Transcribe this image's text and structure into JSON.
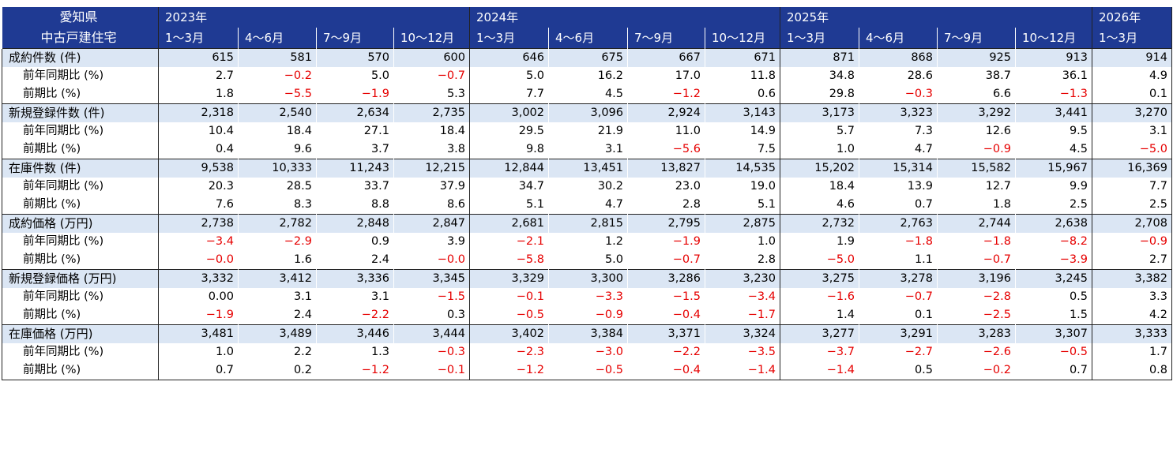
{
  "header": {
    "corner_line1": "愛知県",
    "corner_line2": "中古戸建住宅",
    "years": [
      {
        "label": "2023年",
        "span": 4
      },
      {
        "label": "2024年",
        "span": 4
      },
      {
        "label": "2025年",
        "span": 4
      },
      {
        "label": "2026年",
        "span": 1
      }
    ],
    "quarters": [
      "1～3月",
      "4～6月",
      "7～9月",
      "10～12月",
      "1～3月",
      "4～6月",
      "7～9月",
      "10～12月",
      "1～3月",
      "4～6月",
      "7～9月",
      "10～12月",
      "1～3月"
    ]
  },
  "rows": [
    {
      "label": "成約件数 (件)",
      "main": true,
      "values": [
        "615",
        "581",
        "570",
        "600",
        "646",
        "675",
        "667",
        "671",
        "871",
        "868",
        "925",
        "913",
        "914"
      ]
    },
    {
      "label": "前年同期比 (%)",
      "main": false,
      "values": [
        "2.7",
        "−0.2",
        "5.0",
        "−0.7",
        "5.0",
        "16.2",
        "17.0",
        "11.8",
        "34.8",
        "28.6",
        "38.7",
        "36.1",
        "4.9"
      ]
    },
    {
      "label": "前期比 (%)",
      "main": false,
      "values": [
        "1.8",
        "−5.5",
        "−1.9",
        "5.3",
        "7.7",
        "4.5",
        "−1.2",
        "0.6",
        "29.8",
        "−0.3",
        "6.6",
        "−1.3",
        "0.1"
      ]
    },
    {
      "label": "新規登録件数 (件)",
      "main": true,
      "values": [
        "2,318",
        "2,540",
        "2,634",
        "2,735",
        "3,002",
        "3,096",
        "2,924",
        "3,143",
        "3,173",
        "3,323",
        "3,292",
        "3,441",
        "3,270"
      ]
    },
    {
      "label": "前年同期比 (%)",
      "main": false,
      "values": [
        "10.4",
        "18.4",
        "27.1",
        "18.4",
        "29.5",
        "21.9",
        "11.0",
        "14.9",
        "5.7",
        "7.3",
        "12.6",
        "9.5",
        "3.1"
      ]
    },
    {
      "label": "前期比 (%)",
      "main": false,
      "values": [
        "0.4",
        "9.6",
        "3.7",
        "3.8",
        "9.8",
        "3.1",
        "−5.6",
        "7.5",
        "1.0",
        "4.7",
        "−0.9",
        "4.5",
        "−5.0"
      ]
    },
    {
      "label": "在庫件数 (件)",
      "main": true,
      "values": [
        "9,538",
        "10,333",
        "11,243",
        "12,215",
        "12,844",
        "13,451",
        "13,827",
        "14,535",
        "15,202",
        "15,314",
        "15,582",
        "15,967",
        "16,369"
      ]
    },
    {
      "label": "前年同期比 (%)",
      "main": false,
      "values": [
        "20.3",
        "28.5",
        "33.7",
        "37.9",
        "34.7",
        "30.2",
        "23.0",
        "19.0",
        "18.4",
        "13.9",
        "12.7",
        "9.9",
        "7.7"
      ]
    },
    {
      "label": "前期比 (%)",
      "main": false,
      "values": [
        "7.6",
        "8.3",
        "8.8",
        "8.6",
        "5.1",
        "4.7",
        "2.8",
        "5.1",
        "4.6",
        "0.7",
        "1.8",
        "2.5",
        "2.5"
      ]
    },
    {
      "label": "成約価格 (万円)",
      "main": true,
      "values": [
        "2,738",
        "2,782",
        "2,848",
        "2,847",
        "2,681",
        "2,815",
        "2,795",
        "2,875",
        "2,732",
        "2,763",
        "2,744",
        "2,638",
        "2,708"
      ]
    },
    {
      "label": "前年同期比 (%)",
      "main": false,
      "values": [
        "−3.4",
        "−2.9",
        "0.9",
        "3.9",
        "−2.1",
        "1.2",
        "−1.9",
        "1.0",
        "1.9",
        "−1.8",
        "−1.8",
        "−8.2",
        "−0.9"
      ]
    },
    {
      "label": "前期比 (%)",
      "main": false,
      "values": [
        "−0.0",
        "1.6",
        "2.4",
        "−0.0",
        "−5.8",
        "5.0",
        "−0.7",
        "2.8",
        "−5.0",
        "1.1",
        "−0.7",
        "−3.9",
        "2.7"
      ]
    },
    {
      "label": "新規登録価格 (万円)",
      "main": true,
      "values": [
        "3,332",
        "3,412",
        "3,336",
        "3,345",
        "3,329",
        "3,300",
        "3,286",
        "3,230",
        "3,275",
        "3,278",
        "3,196",
        "3,245",
        "3,382"
      ]
    },
    {
      "label": "前年同期比 (%)",
      "main": false,
      "values": [
        "0.00",
        "3.1",
        "3.1",
        "−1.5",
        "−0.1",
        "−3.3",
        "−1.5",
        "−3.4",
        "−1.6",
        "−0.7",
        "−2.8",
        "0.5",
        "3.3"
      ]
    },
    {
      "label": "前期比 (%)",
      "main": false,
      "values": [
        "−1.9",
        "2.4",
        "−2.2",
        "0.3",
        "−0.5",
        "−0.9",
        "−0.4",
        "−1.7",
        "1.4",
        "0.1",
        "−2.5",
        "1.5",
        "4.2"
      ]
    },
    {
      "label": "在庫価格 (万円)",
      "main": true,
      "values": [
        "3,481",
        "3,489",
        "3,446",
        "3,444",
        "3,402",
        "3,384",
        "3,371",
        "3,324",
        "3,277",
        "3,291",
        "3,283",
        "3,307",
        "3,333"
      ]
    },
    {
      "label": "前年同期比 (%)",
      "main": false,
      "values": [
        "1.0",
        "2.2",
        "1.3",
        "−0.3",
        "−2.3",
        "−3.0",
        "−2.2",
        "−3.5",
        "−3.7",
        "−2.7",
        "−2.6",
        "−0.5",
        "1.7"
      ]
    },
    {
      "label": "前期比 (%)",
      "main": false,
      "values": [
        "0.7",
        "0.2",
        "−1.2",
        "−0.1",
        "−1.2",
        "−0.5",
        "−0.4",
        "−1.4",
        "−1.4",
        "0.5",
        "−0.2",
        "0.7",
        "0.8"
      ]
    }
  ],
  "colors": {
    "header_bg": "#1f3a93",
    "main_row_bg": "#dbe6f4",
    "negative": "#e60000"
  }
}
